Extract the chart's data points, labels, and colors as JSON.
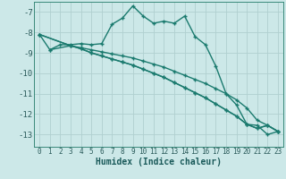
{
  "xlabel": "Humidex (Indice chaleur)",
  "bg_color": "#cce8e8",
  "grid_color": "#b0d0d0",
  "line_color": "#1a7a6e",
  "xlim": [
    -0.5,
    23.5
  ],
  "ylim": [
    -13.6,
    -6.5
  ],
  "yticks": [
    -13,
    -12,
    -11,
    -10,
    -9,
    -8,
    -7
  ],
  "xticks": [
    0,
    1,
    2,
    3,
    4,
    5,
    6,
    7,
    8,
    9,
    10,
    11,
    12,
    13,
    14,
    15,
    16,
    17,
    18,
    19,
    20,
    21,
    22,
    23
  ],
  "line1_x": [
    0,
    1,
    2,
    3,
    4,
    5,
    6,
    7,
    8,
    9,
    10,
    11,
    12,
    13,
    14,
    15,
    16,
    17,
    18,
    19,
    20,
    21,
    22,
    23
  ],
  "line1_y": [
    -8.1,
    -8.85,
    -8.6,
    -8.6,
    -8.55,
    -8.6,
    -8.55,
    -7.6,
    -7.3,
    -6.7,
    -7.2,
    -7.55,
    -7.45,
    -7.55,
    -7.2,
    -8.2,
    -8.6,
    -9.65,
    -11.0,
    -11.55,
    -12.5,
    -12.55,
    -13.0,
    -12.85
  ],
  "line2_x": [
    0,
    3,
    4,
    5,
    6,
    7,
    8,
    9,
    10,
    11,
    12,
    13,
    14,
    15,
    16,
    17,
    18,
    19,
    20,
    21,
    22,
    23
  ],
  "line2_y": [
    -8.1,
    -8.65,
    -8.75,
    -8.85,
    -8.95,
    -9.05,
    -9.15,
    -9.25,
    -9.4,
    -9.55,
    -9.7,
    -9.9,
    -10.1,
    -10.3,
    -10.5,
    -10.75,
    -11.0,
    -11.3,
    -11.7,
    -12.3,
    -12.55,
    -12.85
  ],
  "line3_x": [
    0,
    3,
    4,
    5,
    6,
    7,
    8,
    9,
    10,
    11,
    12,
    13,
    14,
    15,
    16,
    17,
    18,
    19,
    20,
    21,
    22,
    23
  ],
  "line3_y": [
    -8.1,
    -8.65,
    -8.8,
    -9.0,
    -9.15,
    -9.3,
    -9.45,
    -9.6,
    -9.8,
    -10.0,
    -10.2,
    -10.45,
    -10.7,
    -10.95,
    -11.2,
    -11.5,
    -11.8,
    -12.1,
    -12.5,
    -12.7,
    -12.55,
    -12.85
  ],
  "line4_x": [
    1,
    3,
    4,
    5,
    6,
    7,
    8,
    9,
    10,
    11,
    12,
    13,
    14,
    15,
    16,
    17,
    18,
    19,
    20,
    21,
    22,
    23
  ],
  "line4_y": [
    -8.85,
    -8.65,
    -8.8,
    -9.0,
    -9.15,
    -9.3,
    -9.45,
    -9.6,
    -9.8,
    -10.0,
    -10.2,
    -10.45,
    -10.7,
    -10.95,
    -11.2,
    -11.5,
    -11.8,
    -12.1,
    -12.5,
    -12.7,
    -12.55,
    -12.85
  ]
}
